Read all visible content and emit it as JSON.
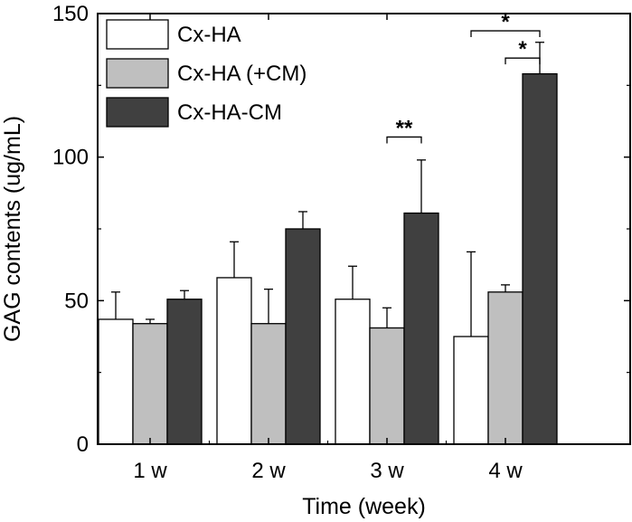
{
  "chart_data": {
    "type": "bar",
    "xlabel": "Time (week)",
    "ylabel": "GAG contents (ug/mL)",
    "ylim": [
      0,
      150
    ],
    "yticks": [
      0,
      50,
      100,
      150
    ],
    "categories": [
      "1 w",
      "2 w",
      "3 w",
      "4 w"
    ],
    "series": [
      {
        "name": "Cx-HA",
        "values": [
          43.5,
          58,
          50.5,
          37.5
        ],
        "errors": [
          9.5,
          12.5,
          11.5,
          29.5
        ],
        "color": "#ffffff"
      },
      {
        "name": "Cx-HA (+CM)",
        "values": [
          42,
          42,
          40.5,
          53
        ],
        "errors": [
          1.5,
          12,
          7,
          2.5
        ],
        "color": "#bfbfbf"
      },
      {
        "name": "Cx-HA-CM",
        "values": [
          50.5,
          75,
          80.5,
          129
        ],
        "errors": [
          3,
          6,
          18.5,
          11
        ],
        "color": "#404040"
      }
    ],
    "legend": "top-left",
    "significance": [
      {
        "category": "3 w",
        "from_series": "Cx-HA (+CM)",
        "to_series": "Cx-HA-CM",
        "label": "**"
      },
      {
        "category": "4 w",
        "from_series": "Cx-HA",
        "to_series": "Cx-HA-CM",
        "label": "*"
      },
      {
        "category": "4 w",
        "from_series": "Cx-HA (+CM)",
        "to_series": "Cx-HA-CM",
        "label": "*"
      }
    ]
  }
}
